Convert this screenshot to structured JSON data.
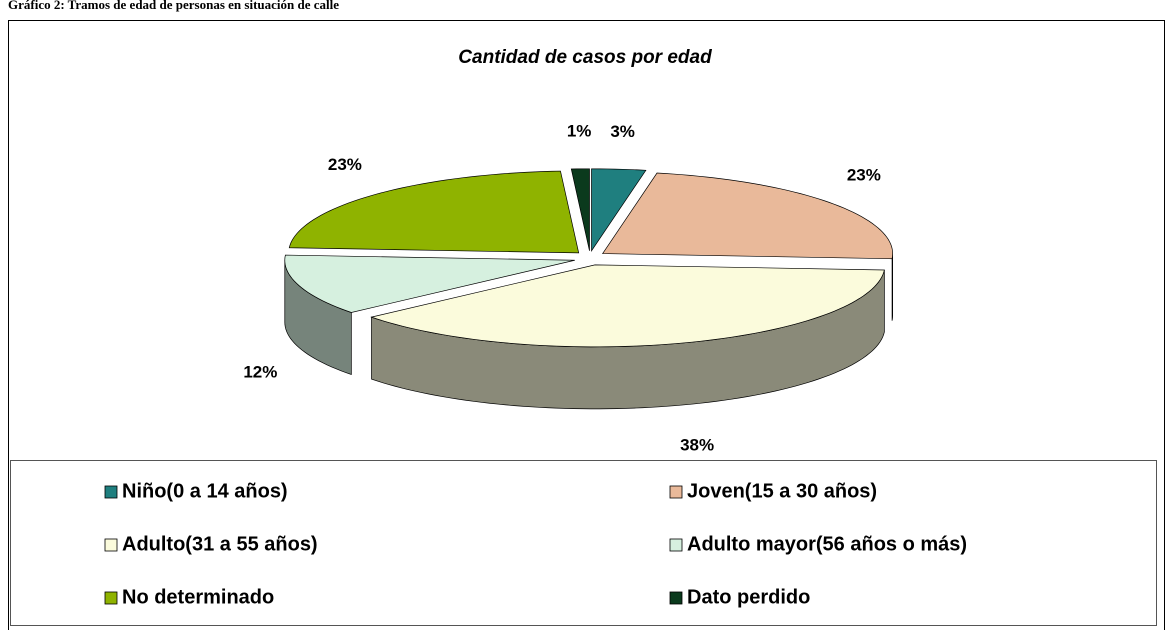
{
  "header": "Gráfico 2: Tramos de edad de personas en situación de calle",
  "chart_data": {
    "type": "pie",
    "title": "Cantidad de casos por edad",
    "categories": [
      "Niño(0 a 14 años)",
      "Joven(15 a 30 años)",
      "Adulto(31 a 55 años)",
      "Adulto mayor(56 años o más)",
      "No determinado",
      "Dato perdido"
    ],
    "values": [
      3,
      23,
      38,
      12,
      23,
      1
    ],
    "value_labels": [
      "3%",
      "23%",
      "38%",
      "12%",
      "23%",
      "1%"
    ],
    "colors": [
      "#1f7f7f",
      "#e9b99a",
      "#fbfbdc",
      "#d6f0df",
      "#8fb300",
      "#0b3a1d"
    ],
    "legend": "bottom"
  }
}
